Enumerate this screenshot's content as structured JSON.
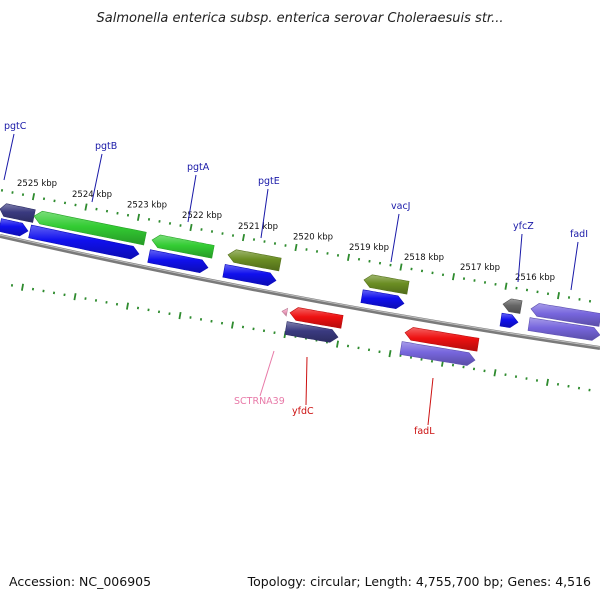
{
  "title": "Salmonella enterica subsp. enterica serovar Choleraesuis str...",
  "footer": {
    "accession": "Accession: NC_006905",
    "summary": "Topology: circular; Length: 4,755,700 bp; Genes: 4,516"
  },
  "colors": {
    "backbone": "#7a7a7a",
    "ruler": "#2e8b2e",
    "label_blue": "#1a1aa8",
    "label_red": "#cc1111",
    "label_pink": "#e87aa8",
    "green": "#33cc33",
    "olive": "#6b8e23",
    "blue": "#1010ee",
    "navy": "#3a3a80",
    "red": "#ee1111",
    "lavender": "#7766dd",
    "grey": "#666666",
    "pink": "#f0a0c0"
  },
  "ruler_labels": [
    "2525 kbp",
    "2524 kbp",
    "2523 kbp",
    "2522 kbp",
    "2521 kbp",
    "2520 kbp",
    "2519 kbp",
    "2518 kbp",
    "2517 kbp",
    "2516 kbp"
  ],
  "features": [
    {
      "strand": "top-outer",
      "color": "navy",
      "dir": "left"
    },
    {
      "strand": "top-outer",
      "color": "green",
      "dir": "left"
    },
    {
      "strand": "top-outer",
      "color": "green",
      "dir": "left"
    },
    {
      "strand": "top-outer",
      "color": "olive",
      "dir": "left"
    },
    {
      "strand": "top-outer",
      "color": "olive",
      "dir": "left"
    },
    {
      "strand": "top-outer",
      "color": "grey",
      "dir": "left"
    },
    {
      "strand": "top-outer",
      "color": "lavender",
      "dir": "left"
    },
    {
      "strand": "top-inner",
      "color": "blue",
      "dir": "right"
    },
    {
      "strand": "top-inner",
      "color": "blue",
      "dir": "right"
    },
    {
      "strand": "top-inner",
      "color": "blue",
      "dir": "right"
    },
    {
      "strand": "top-inner",
      "color": "blue",
      "dir": "right"
    },
    {
      "strand": "top-inner",
      "color": "blue",
      "dir": "right"
    },
    {
      "strand": "top-inner",
      "color": "blue",
      "dir": "right"
    },
    {
      "strand": "top-inner",
      "color": "lavender",
      "dir": "right"
    },
    {
      "strand": "bottom-outer",
      "color": "red",
      "dir": "left"
    },
    {
      "strand": "bottom-outer",
      "color": "red",
      "dir": "left"
    },
    {
      "strand": "bottom-outer",
      "color": "pink",
      "dir": "left"
    },
    {
      "strand": "bottom-inner",
      "color": "navy",
      "dir": "right"
    },
    {
      "strand": "bottom-inner",
      "color": "lavender",
      "dir": "right"
    }
  ],
  "gene_labels": [
    {
      "text": "pgtC",
      "color": "label_blue"
    },
    {
      "text": "pgtB",
      "color": "label_blue"
    },
    {
      "text": "pgtA",
      "color": "label_blue"
    },
    {
      "text": "pgtE",
      "color": "label_blue"
    },
    {
      "text": "vacJ",
      "color": "label_blue"
    },
    {
      "text": "yfcZ",
      "color": "label_blue"
    },
    {
      "text": "fadI",
      "color": "label_blue"
    },
    {
      "text": "SCTRNA39",
      "color": "label_pink"
    },
    {
      "text": "yfdC",
      "color": "label_red"
    },
    {
      "text": "fadL",
      "color": "label_red"
    }
  ]
}
